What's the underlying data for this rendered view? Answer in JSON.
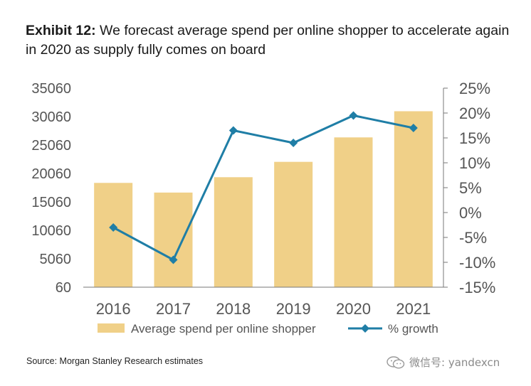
{
  "exhibit_label": "Exhibit 12:",
  "title": "We forecast average spend per online shopper to accelerate again in 2020 as supply fully comes on board",
  "source": "Source: Morgan Stanley Research estimates",
  "watermark": {
    "text": "微信号: yandexcn",
    "icon": "wechat-icon"
  },
  "colors": {
    "bars": "#F0D088",
    "line": "#1F7EA6",
    "axis": "#777777",
    "tick_text": "#555555"
  },
  "chart_data": {
    "type": "bar",
    "categories": [
      "2016",
      "2017",
      "2018",
      "2019",
      "2020",
      "2021"
    ],
    "series": [
      {
        "name": "Average spend per online shopper",
        "type": "bar",
        "axis": "left",
        "values": [
          18400,
          16700,
          19400,
          22100,
          26400,
          31000
        ]
      },
      {
        "name": "% growth",
        "type": "line",
        "axis": "right",
        "marker": "diamond",
        "values": [
          -3,
          -9.5,
          16.5,
          14,
          19.5,
          17
        ]
      }
    ],
    "y_left": {
      "min": 60,
      "max": 35060,
      "ticks": [
        "35060",
        "30060",
        "25060",
        "20060",
        "15060",
        "10060",
        "5060",
        "60"
      ]
    },
    "y_right": {
      "min": -15,
      "max": 25,
      "ticks": [
        "25%",
        "20%",
        "15%",
        "10%",
        "5%",
        "0%",
        "-5%",
        "-10%",
        "-15%"
      ]
    },
    "grid": false,
    "legend": "bottom"
  }
}
